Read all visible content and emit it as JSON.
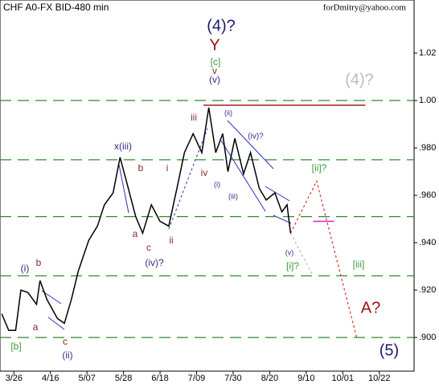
{
  "chart_data": {
    "type": "line",
    "title": "CHF A0-FX BID-480 min",
    "subtitle": "forDmitry@yahoo.com",
    "x": [
      -7,
      -3,
      1,
      4,
      8,
      13,
      15,
      19,
      25,
      29,
      33,
      37,
      43,
      48,
      52,
      57,
      61,
      65,
      70,
      74,
      79,
      84,
      89,
      94,
      98,
      103,
      108,
      112,
      116,
      120,
      123,
      127,
      132,
      136,
      141,
      145,
      150,
      154,
      157,
      159
    ],
    "values": [
      0.91,
      0.903,
      0.903,
      0.92,
      0.919,
      0.914,
      0.924,
      0.916,
      0.908,
      0.906,
      0.916,
      0.928,
      0.941,
      0.947,
      0.956,
      0.961,
      0.976,
      0.965,
      0.951,
      0.944,
      0.956,
      0.949,
      0.947,
      0.964,
      0.978,
      0.986,
      0.978,
      0.997,
      0.978,
      0.986,
      0.97,
      0.984,
      0.969,
      0.978,
      0.963,
      0.958,
      0.961,
      0.953,
      0.956,
      0.944
    ],
    "color": "#000000",
    "levels": [
      1.0,
      0.975,
      0.951,
      0.926,
      0.9
    ],
    "level_color": "#2e8b2e",
    "resistance": {
      "x": [
        109,
        202
      ],
      "value": 0.998,
      "color": "#a02020"
    },
    "projection": {
      "x": [
        159,
        174,
        197
      ],
      "values": [
        0.944,
        0.966,
        0.9
      ],
      "color": "#e03030"
    },
    "alt_projection": {
      "x": [
        159,
        172
      ],
      "values": [
        0.944,
        0.926
      ],
      "color": "#bbbbbb"
    },
    "target": {
      "x": [
        172,
        184
      ],
      "value": 0.949,
      "color": "#e020c0"
    },
    "xlim": [
      -8,
      230
    ],
    "ylim": [
      0.8858,
      1.0424
    ],
    "xticks": [
      {
        "value": 0,
        "label": "3/26"
      },
      {
        "value": 21,
        "label": "4/16"
      },
      {
        "value": 42,
        "label": "5/07"
      },
      {
        "value": 63,
        "label": "5/28"
      },
      {
        "value": 84,
        "label": "6/18"
      },
      {
        "value": 105,
        "label": "7/09"
      },
      {
        "value": 126,
        "label": "7/30"
      },
      {
        "value": 147,
        "label": "8/20"
      },
      {
        "value": 168,
        "label": "9/10"
      },
      {
        "value": 189,
        "label": "10/01"
      },
      {
        "value": 210,
        "label": "10/22"
      }
    ],
    "yticks": [
      1.02,
      {
        "value": 1.0,
        "label": "1.00"
      },
      {
        "value": 0.98,
        "label": ".980"
      },
      {
        "value": 0.96,
        "label": ".960"
      },
      {
        "value": 0.94,
        "label": ".940"
      },
      {
        "value": 0.92,
        "label": ".920"
      },
      {
        "value": 0.9,
        "label": ".900"
      }
    ]
  },
  "annotations": [
    "(4)?",
    "Y",
    "[c]",
    "v",
    "(v)",
    "(4)?",
    "iii",
    "(ii)",
    "(iv)?",
    "x(iii)",
    "b",
    "i",
    "iv",
    "(i)",
    "(iii)",
    "[ii]?",
    "a",
    "c",
    "ii",
    "(iv)?",
    "(v)",
    "[i]?",
    "[iii]",
    "(i)",
    "b",
    "a",
    "c",
    "[b]",
    "(ii)",
    "A?",
    "(5)"
  ]
}
